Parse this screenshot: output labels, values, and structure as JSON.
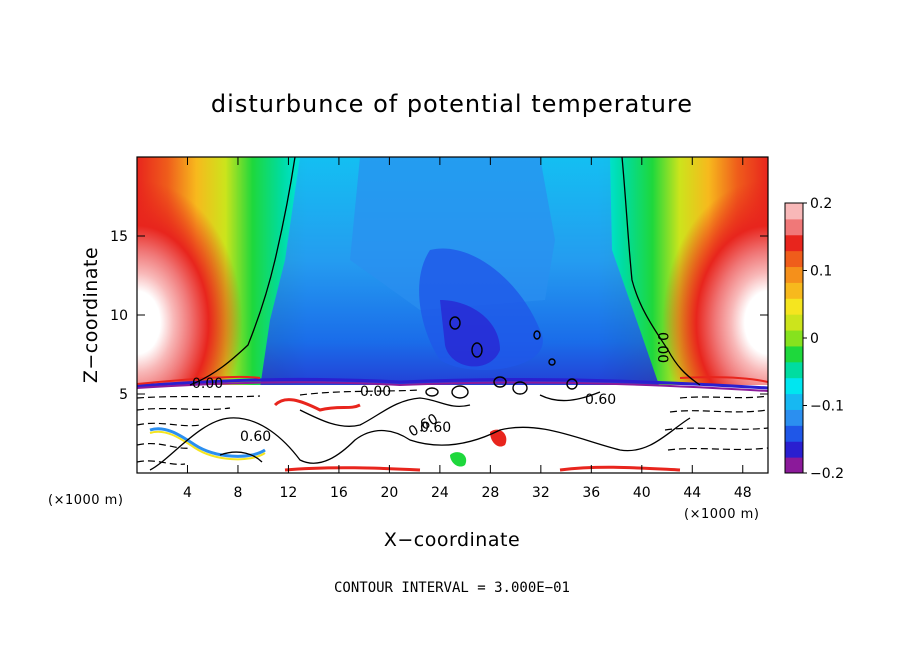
{
  "chart_data": {
    "type": "heatmap",
    "title": "disturbunce of potential temperature",
    "xlabel": "X−coordinate",
    "ylabel": "Z−coordinate",
    "x_unit_left": "(×1000 m)",
    "x_unit_right": "(×1000 m)",
    "xlim": [
      0,
      50
    ],
    "ylim": [
      0,
      20
    ],
    "x_ticks": [
      4,
      8,
      12,
      16,
      20,
      24,
      28,
      32,
      36,
      40,
      44,
      48
    ],
    "x_tick_labels": [
      "4",
      "8",
      "12",
      "16",
      "20",
      "24",
      "28",
      "32",
      "36",
      "40",
      "44",
      "48"
    ],
    "y_ticks": [
      5,
      10,
      15
    ],
    "y_tick_labels": [
      "5",
      "10",
      "15"
    ],
    "colorbar": {
      "min": -0.2,
      "max": 0.2,
      "ticks": [
        0.2,
        0.1,
        0,
        -0.1,
        -0.2
      ],
      "tick_labels": [
        "0.2",
        "0.1",
        "0",
        "−0.1",
        "−0.2"
      ],
      "colors": [
        "#8b1a9a",
        "#2a1fd0",
        "#1f57e8",
        "#2b8ff0",
        "#17b8f2",
        "#00e6f0",
        "#00dca0",
        "#1ed83c",
        "#86e21e",
        "#cce41c",
        "#f5e51f",
        "#f7b91d",
        "#f5901b",
        "#ef5d1b",
        "#e8251d",
        "#f07878",
        "#f8b8b8"
      ]
    },
    "contour_labels": [
      "0.00",
      "0.00",
      "0.00",
      "0.60",
      "0.60",
      "0.60",
      "0.60"
    ],
    "contour_interval_text": "CONTOUR INTERVAL = 3.000E−01",
    "grid": false,
    "legend": "colorbar-right"
  }
}
